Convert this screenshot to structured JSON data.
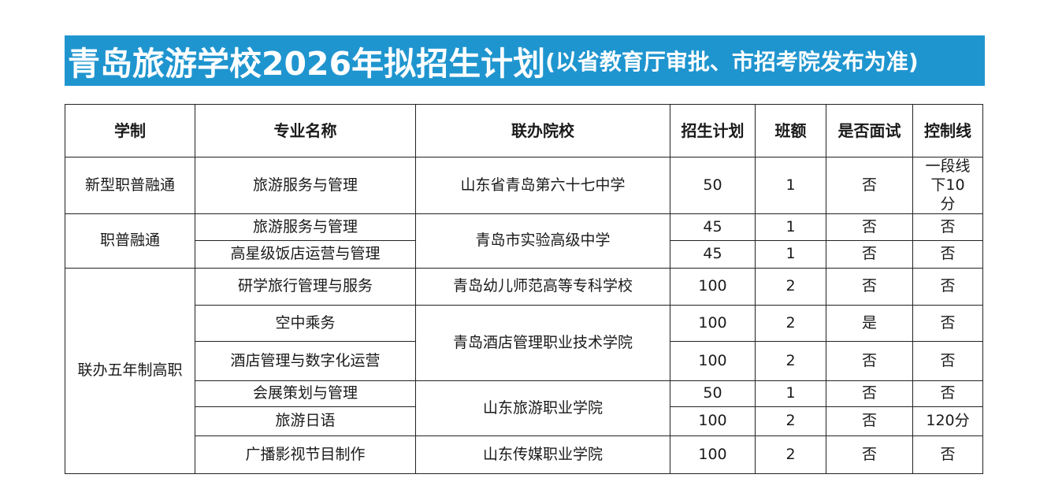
{
  "title": {
    "main": "青岛旅游学校2026年拟招生计划",
    "sub": "(以省教育厅审批、市招考院发布为准)"
  },
  "headers": [
    "学制",
    "专业名称",
    "联办院校",
    "招生计划",
    "班额",
    "是否面试",
    "控制线"
  ],
  "rows": [
    {
      "system": "新型职普融通",
      "major": "旅游服务与管理",
      "school": "山东省青岛第六十七中学",
      "plan": "50",
      "classes": "1",
      "interview": "否",
      "line": "一段线下10分"
    },
    {
      "system": "职普融通",
      "major": "旅游服务与管理",
      "school": "青岛市实验高级中学",
      "plan": "45",
      "classes": "1",
      "interview": "否",
      "line": "否"
    },
    {
      "major": "高星级饭店运营与管理",
      "plan": "45",
      "classes": "1",
      "interview": "否",
      "line": "否"
    },
    {
      "system": "联办五年制高职",
      "major": "研学旅行管理与服务",
      "school": "青岛幼儿师范高等专科学校",
      "plan": "100",
      "classes": "2",
      "interview": "否",
      "line": "否"
    },
    {
      "major": "空中乘务",
      "school": "青岛酒店管理职业技术学院",
      "plan": "100",
      "classes": "2",
      "interview": "是",
      "line": "否"
    },
    {
      "major": "酒店管理与数字化运营",
      "plan": "100",
      "classes": "2",
      "interview": "否",
      "line": "否"
    },
    {
      "major": "会展策划与管理",
      "school": "山东旅游职业学院",
      "plan": "50",
      "classes": "1",
      "interview": "否",
      "line": "否"
    },
    {
      "major": "旅游日语",
      "plan": "100",
      "classes": "2",
      "interview": "否",
      "line": "120分"
    },
    {
      "major": "广播影视节目制作",
      "school": "山东传媒职业学院",
      "plan": "100",
      "classes": "2",
      "interview": "否",
      "line": "否"
    }
  ]
}
